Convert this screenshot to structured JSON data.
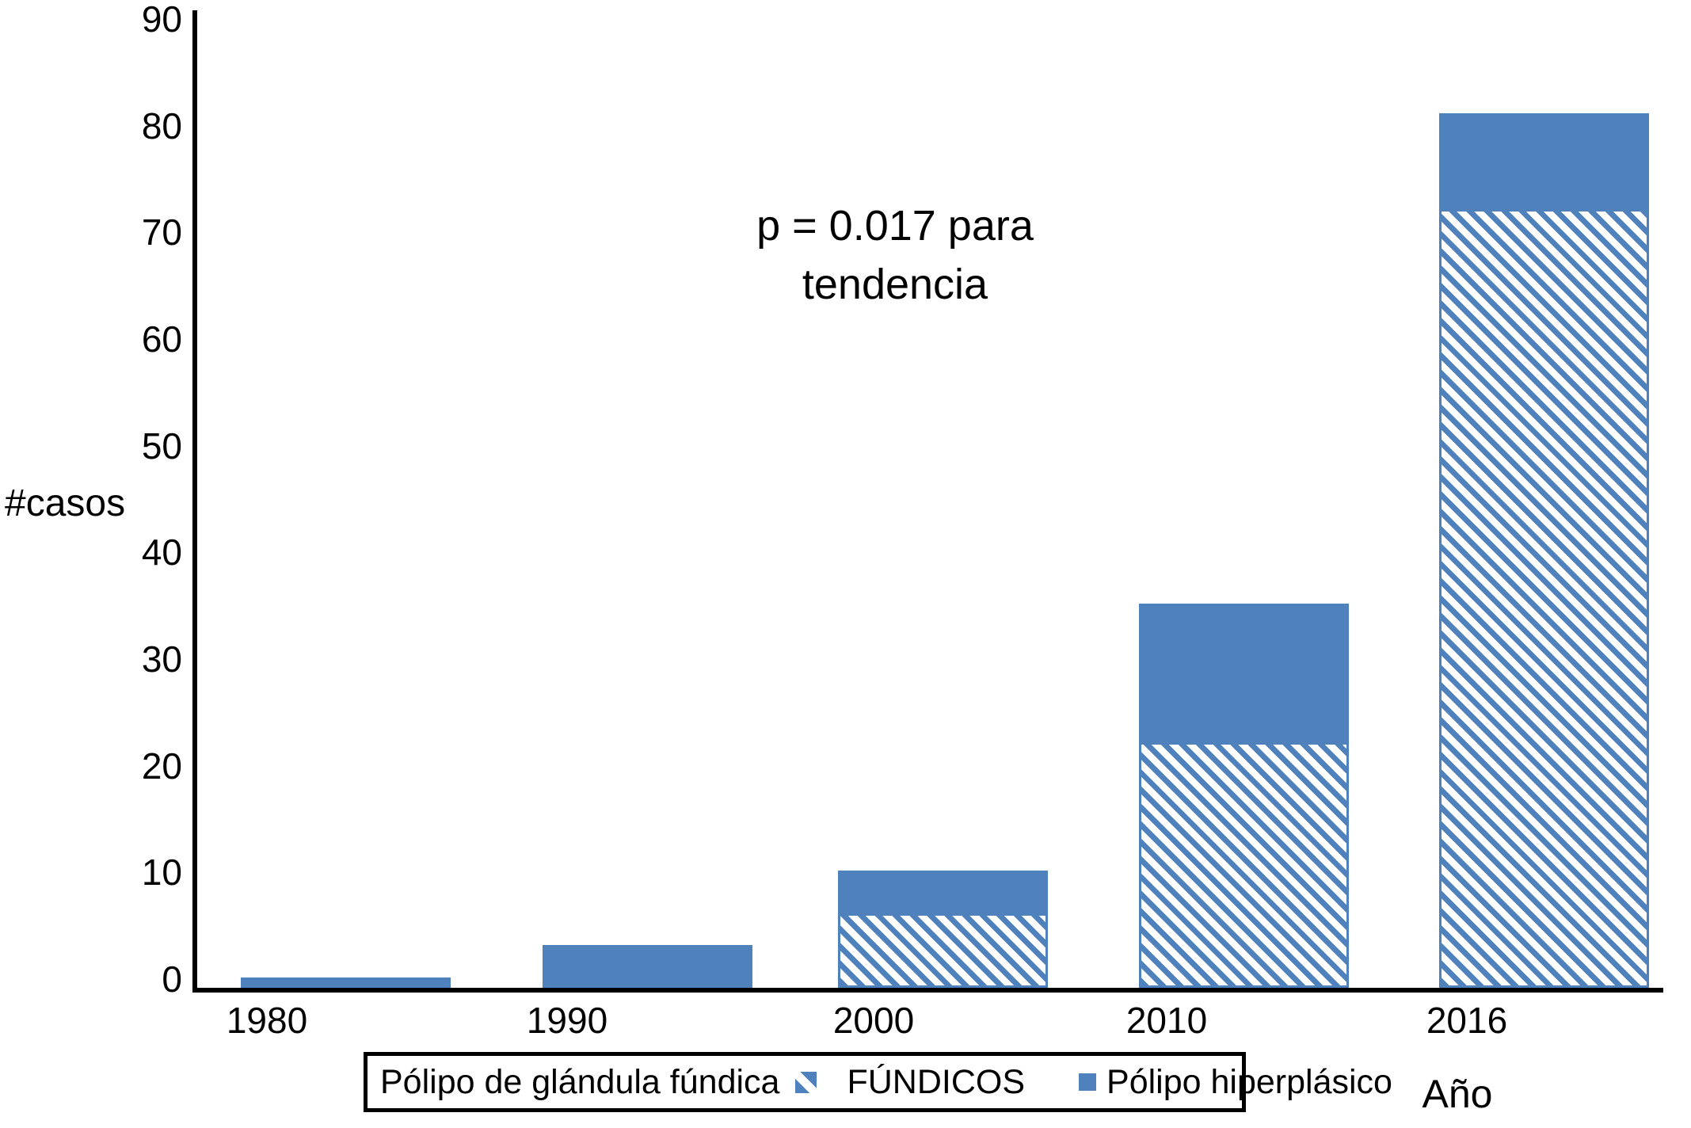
{
  "axis": {
    "ylabel": "#casos",
    "xlabel": "Año"
  },
  "annotation": {
    "line1": "p = 0.017 para",
    "line2": "tendencia"
  },
  "legend": {
    "series1_label": "Pólipo de glándula fúndica",
    "series1_marker_label": "FÚNDICOS",
    "series2_label": "Pólipo hiperplásico"
  },
  "colors": {
    "bar_blue": "#4F81BD",
    "axis_black": "#000000",
    "background": "#FFFFFF"
  },
  "chart_data": {
    "type": "bar",
    "stacked": true,
    "categories": [
      "1980",
      "1990",
      "2000",
      "2010",
      "2016"
    ],
    "series": [
      {
        "name": "FÚNDICOS",
        "legend_prefix": "Pólipo de glándula fúndica",
        "pattern": "diagonal-hatch",
        "values": [
          0,
          0,
          7,
          23,
          73
        ]
      },
      {
        "name": "Pólipo hiperplásico",
        "pattern": "solid",
        "values": [
          1,
          4,
          4,
          13,
          9
        ]
      }
    ],
    "totals": [
      1,
      4,
      11,
      36,
      82
    ],
    "xlabel": "Año",
    "ylabel": "#casos",
    "ylim": [
      0,
      90
    ],
    "yticks": [
      0,
      10,
      20,
      30,
      40,
      50,
      60,
      70,
      80,
      90
    ],
    "grid": false,
    "legend_position": "bottom",
    "annotation": "p = 0.017 para tendencia"
  }
}
